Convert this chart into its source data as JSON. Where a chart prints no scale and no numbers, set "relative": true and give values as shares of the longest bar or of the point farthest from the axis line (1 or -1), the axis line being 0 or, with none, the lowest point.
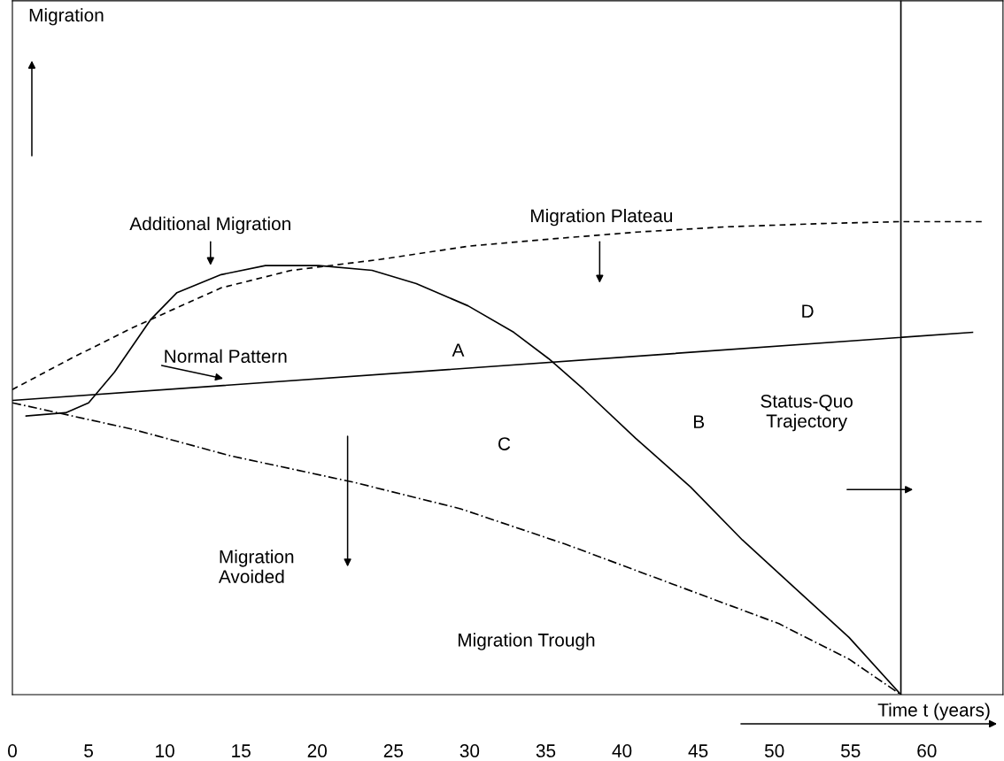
{
  "chart_data": {
    "type": "line",
    "relative": true,
    "xlabel": "Time t (years)",
    "xlim": [
      0,
      65
    ],
    "xticks": [
      0,
      5,
      10,
      15,
      20,
      25,
      30,
      35,
      40,
      45,
      50,
      55,
      60
    ],
    "tick_labels": "x",
    "grid": false,
    "legend": false,
    "marker": "none",
    "series": [
      {
        "color": "#000000",
        "line_style": "dashed",
        "x": [
          0,
          3.8,
          7.9,
          13.7,
          18.3,
          24.1,
          29.9,
          35.2,
          41.0,
          46.8,
          53.2,
          58.3,
          63.6
        ],
        "values": [
          0.645,
          0.71,
          0.776,
          0.86,
          0.897,
          0.92,
          0.948,
          0.963,
          0.978,
          0.989,
          0.996,
          1,
          1
        ]
      },
      {
        "color": "#000000",
        "line_style": "solid",
        "x": [
          0.9,
          3.5,
          5.0,
          6.7,
          9.1,
          10.8,
          13.7,
          16.6,
          20.1,
          23.6,
          26.5,
          29.9,
          32.9,
          35.2,
          37.5,
          40.9,
          44.5,
          47.9,
          51.4,
          54.9,
          58.3
        ],
        "values": [
          0.589,
          0.596,
          0.617,
          0.682,
          0.794,
          0.85,
          0.888,
          0.907,
          0.907,
          0.897,
          0.869,
          0.822,
          0.766,
          0.71,
          0.645,
          0.542,
          0.439,
          0.327,
          0.224,
          0.121,
          0
        ]
      },
      {
        "color": "#000000",
        "line_style": "solid",
        "x": [
          0,
          63.0
        ],
        "values": [
          0.622,
          0.766
        ]
      },
      {
        "color": "#000000",
        "line_style": "dashdot",
        "x": [
          0,
          7.9,
          14.3,
          22.4,
          29.4,
          36.3,
          43.3,
          50.3,
          54.9,
          58.3
        ],
        "values": [
          0.617,
          0.561,
          0.505,
          0.449,
          0.393,
          0.318,
          0.234,
          0.15,
          0.075,
          0
        ]
      }
    ],
    "ref_lines": [
      {
        "axis": "x",
        "value": 58.3,
        "color": "#000000",
        "line_style": "solid"
      }
    ],
    "annotations": [
      "Migration",
      "Additional Migration",
      "Migration Plateau",
      "Normal Pattern",
      "A",
      "B",
      "C",
      "D",
      "Status-Quo\nTrajectory",
      "Migration\nAvoided",
      "Migration Trough"
    ]
  }
}
